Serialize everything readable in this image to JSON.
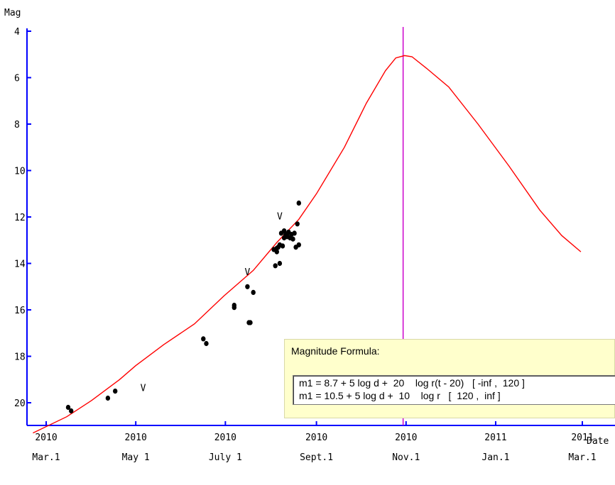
{
  "chart_data": {
    "type": "scatter",
    "title": "",
    "ylabel": "Mag",
    "xlabel": "Date",
    "ylim": [
      21.2,
      4
    ],
    "y_inverted": true,
    "xlim": [
      "2010-02-20",
      "2011-03-01"
    ],
    "yticks": [
      "4",
      "6",
      "8",
      "10",
      "12",
      "14",
      "16",
      "18",
      "20"
    ],
    "xticks": [
      {
        "date": "2010-03-01",
        "year": "2010",
        "label": "Mar.1"
      },
      {
        "date": "2010-05-01",
        "year": "2010",
        "label": "May 1"
      },
      {
        "date": "2010-07-01",
        "year": "2010",
        "label": "July 1"
      },
      {
        "date": "2010-09-01",
        "year": "2010",
        "label": "Sept.1"
      },
      {
        "date": "2010-11-01",
        "year": "2010",
        "label": "Nov.1"
      },
      {
        "date": "2011-01-01",
        "year": "2011",
        "label": "Jan.1"
      },
      {
        "date": "2011-03-01",
        "year": "2011",
        "label": "Mar.1"
      }
    ],
    "model_curve": {
      "color": "#ff0000",
      "points": [
        [
          "2010-02-20",
          21.3
        ],
        [
          "2010-03-15",
          20.6
        ],
        [
          "2010-04-01",
          19.9
        ],
        [
          "2010-04-20",
          19.0
        ],
        [
          "2010-05-01",
          18.4
        ],
        [
          "2010-05-20",
          17.5
        ],
        [
          "2010-06-10",
          16.6
        ],
        [
          "2010-06-30",
          15.4
        ],
        [
          "2010-07-20",
          14.3
        ],
        [
          "2010-08-05",
          13.1
        ],
        [
          "2010-08-20",
          12.1
        ],
        [
          "2010-09-01",
          11.0
        ],
        [
          "2010-09-20",
          9.0
        ],
        [
          "2010-10-05",
          7.1
        ],
        [
          "2010-10-18",
          5.7
        ],
        [
          "2010-10-25",
          5.15
        ],
        [
          "2010-10-31",
          5.05
        ],
        [
          "2010-11-05",
          5.1
        ],
        [
          "2010-11-15",
          5.6
        ],
        [
          "2010-11-30",
          6.4
        ],
        [
          "2010-12-20",
          8.0
        ],
        [
          "2011-01-10",
          9.8
        ],
        [
          "2011-01-31",
          11.7
        ],
        [
          "2011-02-15",
          12.8
        ],
        [
          "2011-02-28",
          13.5
        ]
      ]
    },
    "perihelion_marker": {
      "date": "2010-10-30",
      "color": "#cc00cc"
    },
    "observations": [
      [
        "2010-03-16",
        20.2
      ],
      [
        "2010-03-18",
        20.35
      ],
      [
        "2010-04-12",
        19.8
      ],
      [
        "2010-04-17",
        19.5
      ],
      [
        "2010-06-16",
        17.25
      ],
      [
        "2010-06-18",
        17.45
      ],
      [
        "2010-07-07",
        15.8
      ],
      [
        "2010-07-07",
        15.9
      ],
      [
        "2010-07-16",
        15.0
      ],
      [
        "2010-07-17",
        16.55
      ],
      [
        "2010-07-18",
        16.55
      ],
      [
        "2010-07-20",
        15.25
      ],
      [
        "2010-08-03",
        13.4
      ],
      [
        "2010-08-04",
        14.1
      ],
      [
        "2010-08-05",
        13.35
      ],
      [
        "2010-08-05",
        13.5
      ],
      [
        "2010-08-06",
        13.3
      ],
      [
        "2010-08-07",
        13.2
      ],
      [
        "2010-08-07",
        14.0
      ],
      [
        "2010-08-08",
        12.7
      ],
      [
        "2010-08-09",
        13.25
      ],
      [
        "2010-08-10",
        12.6
      ],
      [
        "2010-08-10",
        12.9
      ],
      [
        "2010-08-11",
        12.75
      ],
      [
        "2010-08-12",
        12.8
      ],
      [
        "2010-08-13",
        12.65
      ],
      [
        "2010-08-14",
        12.9
      ],
      [
        "2010-08-15",
        12.75
      ],
      [
        "2010-08-16",
        12.95
      ],
      [
        "2010-08-17",
        12.7
      ],
      [
        "2010-08-18",
        13.3
      ],
      [
        "2010-08-19",
        12.3
      ],
      [
        "2010-08-20",
        13.2
      ],
      [
        "2010-08-20",
        11.4
      ],
      [
        "2010-08-12",
        12.85
      ]
    ],
    "upper_limits": [
      {
        "date": "2010-05-06",
        "mag": 19.5,
        "symbol": "V"
      },
      {
        "date": "2010-07-16",
        "mag": 14.5,
        "symbol": "V"
      },
      {
        "date": "2010-08-07",
        "mag": 12.1,
        "symbol": "V"
      }
    ]
  },
  "tooltip": {
    "title": "Magnitude Formula:",
    "line1": "m1 = 8.7 + 5 log d +  20    log r(t - 20)   [ -inf ,  120 ]",
    "line2": "m1 = 10.5 + 5 log d +  10    log r   [  120 ,  inf ]"
  }
}
